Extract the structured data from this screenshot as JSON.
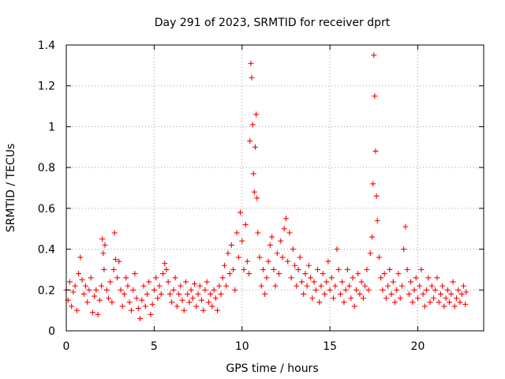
{
  "chart_data": {
    "type": "scatter",
    "title": "Day 291 of 2023, SRMTID for receiver dprt",
    "xlabel": "GPS time / hours",
    "ylabel": "SRMTID / TECUs",
    "xlim": [
      0,
      23.75
    ],
    "ylim": [
      0,
      1.4
    ],
    "x_ticks": [
      "0",
      "5",
      "10",
      "15",
      "20"
    ],
    "y_ticks": [
      "0",
      "0.2",
      "0.4",
      "0.6",
      "0.8",
      "1",
      "1.2",
      "1.4"
    ],
    "grid": true,
    "marker": "+",
    "series": [
      {
        "name": "dprt",
        "color": "#ff0000",
        "points": [
          [
            0.0,
            0.2
          ],
          [
            0.1,
            0.15
          ],
          [
            0.2,
            0.24
          ],
          [
            0.3,
            0.12
          ],
          [
            0.4,
            0.19
          ],
          [
            0.5,
            0.22
          ],
          [
            0.6,
            0.1
          ],
          [
            0.7,
            0.28
          ],
          [
            0.8,
            0.36
          ],
          [
            0.9,
            0.25
          ],
          [
            1.0,
            0.18
          ],
          [
            1.1,
            0.22
          ],
          [
            1.2,
            0.14
          ],
          [
            1.3,
            0.2
          ],
          [
            1.4,
            0.26
          ],
          [
            1.5,
            0.09
          ],
          [
            1.6,
            0.17
          ],
          [
            1.7,
            0.2
          ],
          [
            1.8,
            0.08
          ],
          [
            1.9,
            0.15
          ],
          [
            2.0,
            0.22
          ],
          [
            2.05,
            0.45
          ],
          [
            2.1,
            0.38
          ],
          [
            2.15,
            0.3
          ],
          [
            2.2,
            0.42
          ],
          [
            2.3,
            0.2
          ],
          [
            2.4,
            0.16
          ],
          [
            2.5,
            0.24
          ],
          [
            2.6,
            0.14
          ],
          [
            2.7,
            0.3
          ],
          [
            2.75,
            0.48
          ],
          [
            2.8,
            0.35
          ],
          [
            2.9,
            0.26
          ],
          [
            3.0,
            0.34
          ],
          [
            3.1,
            0.2
          ],
          [
            3.2,
            0.12
          ],
          [
            3.3,
            0.18
          ],
          [
            3.4,
            0.26
          ],
          [
            3.5,
            0.22
          ],
          [
            3.6,
            0.14
          ],
          [
            3.7,
            0.1
          ],
          [
            3.8,
            0.2
          ],
          [
            3.9,
            0.28
          ],
          [
            4.0,
            0.16
          ],
          [
            4.1,
            0.11
          ],
          [
            4.2,
            0.06
          ],
          [
            4.3,
            0.15
          ],
          [
            4.4,
            0.22
          ],
          [
            4.5,
            0.12
          ],
          [
            4.6,
            0.18
          ],
          [
            4.7,
            0.24
          ],
          [
            4.8,
            0.08
          ],
          [
            4.9,
            0.13
          ],
          [
            5.0,
            0.2
          ],
          [
            5.1,
            0.26
          ],
          [
            5.2,
            0.16
          ],
          [
            5.3,
            0.22
          ],
          [
            5.4,
            0.18
          ],
          [
            5.5,
            0.28
          ],
          [
            5.6,
            0.33
          ],
          [
            5.7,
            0.3
          ],
          [
            5.8,
            0.24
          ],
          [
            5.9,
            0.18
          ],
          [
            6.0,
            0.14
          ],
          [
            6.1,
            0.2
          ],
          [
            6.2,
            0.26
          ],
          [
            6.3,
            0.12
          ],
          [
            6.4,
            0.18
          ],
          [
            6.5,
            0.22
          ],
          [
            6.6,
            0.15
          ],
          [
            6.7,
            0.1
          ],
          [
            6.8,
            0.24
          ],
          [
            6.9,
            0.18
          ],
          [
            7.0,
            0.14
          ],
          [
            7.1,
            0.2
          ],
          [
            7.2,
            0.16
          ],
          [
            7.3,
            0.23
          ],
          [
            7.4,
            0.12
          ],
          [
            7.5,
            0.18
          ],
          [
            7.6,
            0.22
          ],
          [
            7.7,
            0.15
          ],
          [
            7.8,
            0.1
          ],
          [
            7.9,
            0.2
          ],
          [
            8.0,
            0.24
          ],
          [
            8.1,
            0.14
          ],
          [
            8.2,
            0.18
          ],
          [
            8.3,
            0.12
          ],
          [
            8.4,
            0.2
          ],
          [
            8.5,
            0.16
          ],
          [
            8.6,
            0.1
          ],
          [
            8.7,
            0.22
          ],
          [
            8.8,
            0.18
          ],
          [
            8.9,
            0.26
          ],
          [
            9.0,
            0.32
          ],
          [
            9.1,
            0.22
          ],
          [
            9.2,
            0.38
          ],
          [
            9.3,
            0.28
          ],
          [
            9.4,
            0.42
          ],
          [
            9.5,
            0.3
          ],
          [
            9.6,
            0.2
          ],
          [
            9.7,
            0.48
          ],
          [
            9.8,
            0.36
          ],
          [
            9.9,
            0.58
          ],
          [
            10.0,
            0.44
          ],
          [
            10.1,
            0.3
          ],
          [
            10.2,
            0.52
          ],
          [
            10.3,
            0.34
          ],
          [
            10.4,
            0.28
          ],
          [
            10.45,
            0.93
          ],
          [
            10.5,
            1.31
          ],
          [
            10.55,
            1.24
          ],
          [
            10.6,
            1.01
          ],
          [
            10.65,
            0.77
          ],
          [
            10.7,
            0.68
          ],
          [
            10.75,
            0.9
          ],
          [
            10.8,
            1.06
          ],
          [
            10.85,
            0.65
          ],
          [
            10.9,
            0.48
          ],
          [
            11.0,
            0.36
          ],
          [
            11.1,
            0.22
          ],
          [
            11.2,
            0.3
          ],
          [
            11.3,
            0.18
          ],
          [
            11.4,
            0.26
          ],
          [
            11.5,
            0.34
          ],
          [
            11.6,
            0.42
          ],
          [
            11.7,
            0.46
          ],
          [
            11.8,
            0.3
          ],
          [
            11.9,
            0.22
          ],
          [
            12.0,
            0.38
          ],
          [
            12.1,
            0.28
          ],
          [
            12.2,
            0.44
          ],
          [
            12.3,
            0.36
          ],
          [
            12.4,
            0.5
          ],
          [
            12.5,
            0.55
          ],
          [
            12.6,
            0.34
          ],
          [
            12.7,
            0.48
          ],
          [
            12.8,
            0.26
          ],
          [
            12.9,
            0.4
          ],
          [
            13.0,
            0.32
          ],
          [
            13.1,
            0.22
          ],
          [
            13.2,
            0.3
          ],
          [
            13.3,
            0.36
          ],
          [
            13.4,
            0.24
          ],
          [
            13.5,
            0.18
          ],
          [
            13.6,
            0.28
          ],
          [
            13.7,
            0.22
          ],
          [
            13.8,
            0.32
          ],
          [
            13.9,
            0.26
          ],
          [
            14.0,
            0.16
          ],
          [
            14.1,
            0.24
          ],
          [
            14.2,
            0.2
          ],
          [
            14.3,
            0.3
          ],
          [
            14.4,
            0.14
          ],
          [
            14.5,
            0.22
          ],
          [
            14.6,
            0.28
          ],
          [
            14.7,
            0.18
          ],
          [
            14.8,
            0.24
          ],
          [
            14.9,
            0.34
          ],
          [
            15.0,
            0.2
          ],
          [
            15.1,
            0.26
          ],
          [
            15.2,
            0.16
          ],
          [
            15.3,
            0.22
          ],
          [
            15.4,
            0.4
          ],
          [
            15.5,
            0.3
          ],
          [
            15.6,
            0.18
          ],
          [
            15.7,
            0.24
          ],
          [
            15.8,
            0.14
          ],
          [
            15.9,
            0.2
          ],
          [
            16.0,
            0.3
          ],
          [
            16.1,
            0.22
          ],
          [
            16.2,
            0.16
          ],
          [
            16.3,
            0.26
          ],
          [
            16.4,
            0.12
          ],
          [
            16.5,
            0.2
          ],
          [
            16.6,
            0.28
          ],
          [
            16.7,
            0.18
          ],
          [
            16.8,
            0.24
          ],
          [
            16.9,
            0.16
          ],
          [
            17.0,
            0.22
          ],
          [
            17.1,
            0.3
          ],
          [
            17.2,
            0.2
          ],
          [
            17.3,
            0.38
          ],
          [
            17.4,
            0.46
          ],
          [
            17.45,
            0.72
          ],
          [
            17.5,
            1.35
          ],
          [
            17.55,
            1.15
          ],
          [
            17.6,
            0.88
          ],
          [
            17.65,
            0.66
          ],
          [
            17.7,
            0.54
          ],
          [
            17.8,
            0.36
          ],
          [
            17.9,
            0.26
          ],
          [
            18.0,
            0.2
          ],
          [
            18.1,
            0.28
          ],
          [
            18.2,
            0.16
          ],
          [
            18.3,
            0.22
          ],
          [
            18.4,
            0.3
          ],
          [
            18.5,
            0.18
          ],
          [
            18.6,
            0.24
          ],
          [
            18.7,
            0.14
          ],
          [
            18.8,
            0.2
          ],
          [
            18.9,
            0.28
          ],
          [
            19.0,
            0.16
          ],
          [
            19.1,
            0.22
          ],
          [
            19.2,
            0.4
          ],
          [
            19.3,
            0.51
          ],
          [
            19.4,
            0.3
          ],
          [
            19.5,
            0.18
          ],
          [
            19.6,
            0.24
          ],
          [
            19.7,
            0.14
          ],
          [
            19.8,
            0.2
          ],
          [
            19.9,
            0.26
          ],
          [
            20.0,
            0.16
          ],
          [
            20.1,
            0.22
          ],
          [
            20.2,
            0.3
          ],
          [
            20.3,
            0.18
          ],
          [
            20.4,
            0.12
          ],
          [
            20.5,
            0.2
          ],
          [
            20.6,
            0.26
          ],
          [
            20.7,
            0.14
          ],
          [
            20.8,
            0.22
          ],
          [
            20.9,
            0.16
          ],
          [
            21.0,
            0.2
          ],
          [
            21.1,
            0.26
          ],
          [
            21.2,
            0.14
          ],
          [
            21.3,
            0.18
          ],
          [
            21.4,
            0.22
          ],
          [
            21.5,
            0.12
          ],
          [
            21.6,
            0.16
          ],
          [
            21.7,
            0.2
          ],
          [
            21.8,
            0.14
          ],
          [
            21.9,
            0.18
          ],
          [
            22.0,
            0.24
          ],
          [
            22.1,
            0.12
          ],
          [
            22.2,
            0.16
          ],
          [
            22.3,
            0.2
          ],
          [
            22.4,
            0.14
          ],
          [
            22.5,
            0.18
          ],
          [
            22.6,
            0.22
          ],
          [
            22.7,
            0.13
          ],
          [
            22.75,
            0.19
          ]
        ]
      }
    ]
  }
}
